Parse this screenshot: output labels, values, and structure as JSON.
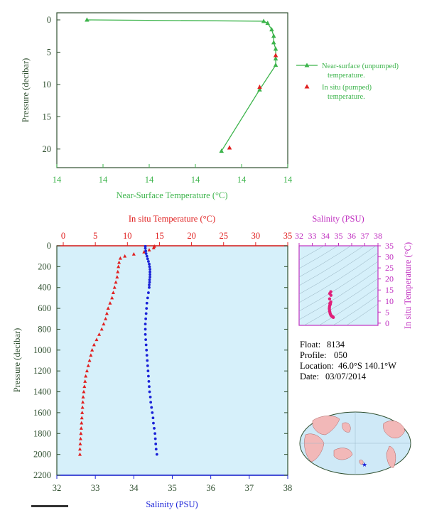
{
  "colors": {
    "green": "#3cb44b",
    "red": "#e02020",
    "blue": "#1a22d8",
    "magenta": "#c030c0",
    "pink": "#e0207a",
    "axis_dark": "#2f4f2f",
    "panel_fill": "#d6f0fa",
    "land": "#f2b8b8",
    "ocean": "#cfe9f7"
  },
  "chart_data": [
    {
      "id": "near_surface",
      "type": "line",
      "xlabel": "Near-Surface Temperature (°C)",
      "ylabel": "Pressure (decibar)",
      "x_ticks": [
        "14",
        "14",
        "14",
        "14",
        "14",
        "14"
      ],
      "y_ticks": [
        "0",
        "5",
        "10",
        "15",
        "20"
      ],
      "xlim": [
        13.2,
        14.35
      ],
      "ylim": [
        0,
        22
      ],
      "y_reversed": true,
      "grid": false,
      "legend_position": "right",
      "series": [
        {
          "name": "Near-surface (unpumped) temperature.",
          "marker": "triangle",
          "line": true,
          "x": [
            13.35,
            14.23,
            14.25,
            14.27,
            14.28,
            14.28,
            14.29,
            14.29,
            14.29,
            14.21,
            14.02
          ],
          "y": [
            0.0,
            0.2,
            0.5,
            1.5,
            2.5,
            3.5,
            4.5,
            6.0,
            7.0,
            10.8,
            20.3
          ]
        },
        {
          "name": "In situ (pumped) temperature.",
          "marker": "triangle",
          "line": false,
          "x": [
            14.29,
            14.21,
            14.06
          ],
          "y": [
            5.5,
            10.4,
            19.8
          ]
        }
      ]
    },
    {
      "id": "profile",
      "type": "scatter",
      "top_xlabel": "In situ Temperature (°C)",
      "bottom_xlabel": "Salinity (PSU)",
      "ylabel": "Pressure (decibar)",
      "temp_ticks": [
        "0",
        "5",
        "10",
        "15",
        "20",
        "25",
        "30",
        "35"
      ],
      "sal_ticks": [
        "32",
        "33",
        "34",
        "35",
        "36",
        "37",
        "38"
      ],
      "y_ticks": [
        "0",
        "200",
        "400",
        "600",
        "800",
        "1000",
        "1200",
        "1400",
        "1600",
        "1800",
        "2000",
        "2200"
      ],
      "temp_lim": [
        -1,
        35
      ],
      "sal_lim": [
        32,
        38
      ],
      "ylim": [
        0,
        2200
      ],
      "y_reversed": true,
      "series": [
        {
          "name": "In situ Temperature (°C)",
          "marker": "triangle",
          "p": [
            5,
            20,
            40,
            60,
            80,
            100,
            120,
            160,
            200,
            250,
            300,
            350,
            400,
            450,
            500,
            550,
            600,
            650,
            700,
            750,
            800,
            850,
            900,
            950,
            1000,
            1050,
            1100,
            1150,
            1200,
            1250,
            1300,
            1350,
            1400,
            1450,
            1500,
            1550,
            1600,
            1650,
            1700,
            1750,
            1800,
            1850,
            1900,
            1950,
            2000
          ],
          "t": [
            14.2,
            14.1,
            13.4,
            12.6,
            11.0,
            9.6,
            8.9,
            8.7,
            8.6,
            8.5,
            8.4,
            8.2,
            8.0,
            7.8,
            7.6,
            7.3,
            7.0,
            6.8,
            6.6,
            6.3,
            6.0,
            5.6,
            5.2,
            4.8,
            4.5,
            4.3,
            4.1,
            3.9,
            3.7,
            3.5,
            3.4,
            3.3,
            3.2,
            3.1,
            3.05,
            3.0,
            2.95,
            2.9,
            2.85,
            2.8,
            2.75,
            2.7,
            2.65,
            2.6,
            2.6
          ]
        },
        {
          "name": "Salinity (PSU)",
          "marker": "circle",
          "p": [
            5,
            25,
            50,
            75,
            100,
            125,
            150,
            175,
            200,
            225,
            250,
            275,
            300,
            325,
            350,
            375,
            400,
            450,
            500,
            550,
            600,
            650,
            700,
            750,
            800,
            850,
            900,
            950,
            1000,
            1050,
            1100,
            1150,
            1200,
            1250,
            1300,
            1350,
            1400,
            1450,
            1500,
            1550,
            1600,
            1650,
            1700,
            1750,
            1800,
            1850,
            1900,
            1950,
            2000
          ],
          "s": [
            34.3,
            34.3,
            34.31,
            34.32,
            34.34,
            34.36,
            34.38,
            34.4,
            34.41,
            34.42,
            34.42,
            34.42,
            34.42,
            34.41,
            34.41,
            34.4,
            34.4,
            34.38,
            34.36,
            34.34,
            34.33,
            34.32,
            34.31,
            34.3,
            34.3,
            34.3,
            34.31,
            34.32,
            34.33,
            34.34,
            34.35,
            34.36,
            34.37,
            34.38,
            34.39,
            34.4,
            34.41,
            34.43,
            34.44,
            34.46,
            34.48,
            34.5,
            34.51,
            34.53,
            34.55,
            34.56,
            34.57,
            34.58,
            34.6
          ]
        }
      ]
    },
    {
      "id": "ts_diagram",
      "type": "scatter",
      "xlabel": "Salinity (PSU)",
      "ylabel": "In situ Temperature (°C)",
      "x_ticks": [
        "32",
        "33",
        "34",
        "35",
        "36",
        "37",
        "38"
      ],
      "y_ticks": [
        "0",
        "5",
        "10",
        "15",
        "20",
        "25",
        "30",
        "35"
      ],
      "xlim": [
        32,
        38
      ],
      "ylim": [
        -1,
        35
      ],
      "grid": true,
      "series": [
        {
          "marker": "circle",
          "s": [
            34.41,
            34.42,
            34.41,
            34.38,
            34.36,
            34.33,
            34.31,
            34.3,
            34.31,
            34.33,
            34.36,
            34.38,
            34.41,
            34.44,
            34.48,
            34.51,
            34.55,
            34.58,
            34.6,
            34.32,
            34.33,
            34.34
          ],
          "t": [
            14.2,
            12.6,
            9.6,
            8.7,
            8.4,
            8.0,
            7.3,
            6.6,
            6.0,
            5.2,
            4.5,
            4.1,
            3.7,
            3.4,
            3.2,
            3.0,
            2.9,
            2.75,
            2.6,
            11.0,
            13.4,
            8.9
          ]
        }
      ]
    }
  ],
  "info": {
    "float_label": "Float:",
    "float_value": "8134",
    "profile_label": "Profile:",
    "profile_value": "050",
    "location_label": "Location:",
    "location_value": "46.0°S  140.1°W",
    "date_label": "Date:",
    "date_value": "03/07/2014"
  },
  "map": {
    "float_marker": "star-icon",
    "float_lat": -46.0,
    "float_lon": -140.1
  }
}
